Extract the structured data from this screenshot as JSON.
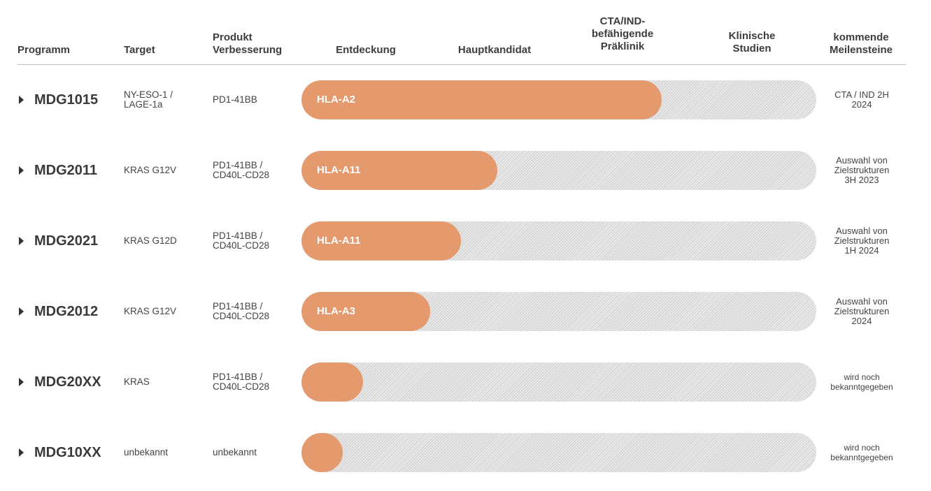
{
  "header": {
    "programm": "Programm",
    "target": "Target",
    "produkt": "Produkt\nVerbesserung",
    "entdeckung": "Entdeckung",
    "hauptkandidat": "Hauptkandidat",
    "praeklinik": "CTA/IND-\nbefähigende\nPräklinik",
    "klinische": "Klinische\nStudien",
    "meilensteine": "kommende\nMeilensteine"
  },
  "colors": {
    "fill": "#e59a6e",
    "track": "#e4e4e4"
  },
  "rows": [
    {
      "program": "MDG1015",
      "target": "NY-ESO-1 /\nLAGE-1a",
      "product": "PD1-41BB",
      "label": "HLA-A2",
      "progress": 0.7,
      "milestone": "CTA / IND 2H\n2024"
    },
    {
      "program": "MDG2011",
      "target": "KRAS G12V",
      "product": "PD1-41BB /\nCD40L-CD28",
      "label": "HLA-A11",
      "progress": 0.38,
      "milestone": "Auswahl von\nZielstrukturen\n3H 2023"
    },
    {
      "program": "MDG2021",
      "target": "KRAS G12D",
      "product": "PD1-41BB /\nCD40L-CD28",
      "label": "HLA-A11",
      "progress": 0.31,
      "milestone": "Auswahl von\nZielstrukturen\n1H 2024"
    },
    {
      "program": "MDG2012",
      "target": "KRAS G12V",
      "product": "PD1-41BB /\nCD40L-CD28",
      "label": "HLA-A3",
      "progress": 0.25,
      "milestone": "Auswahl von\nZielstrukturen\n2024"
    },
    {
      "program": "MDG20XX",
      "target": "KRAS",
      "product": "PD1-41BB /\nCD40L-CD28",
      "label": "",
      "progress": 0.12,
      "milestone": "wird noch\nbekanntgegeben"
    },
    {
      "program": "MDG10XX",
      "target": "unbekannt",
      "product": "unbekannt",
      "label": "",
      "progress": 0.08,
      "milestone": "wird noch\nbekanntgegeben"
    }
  ]
}
